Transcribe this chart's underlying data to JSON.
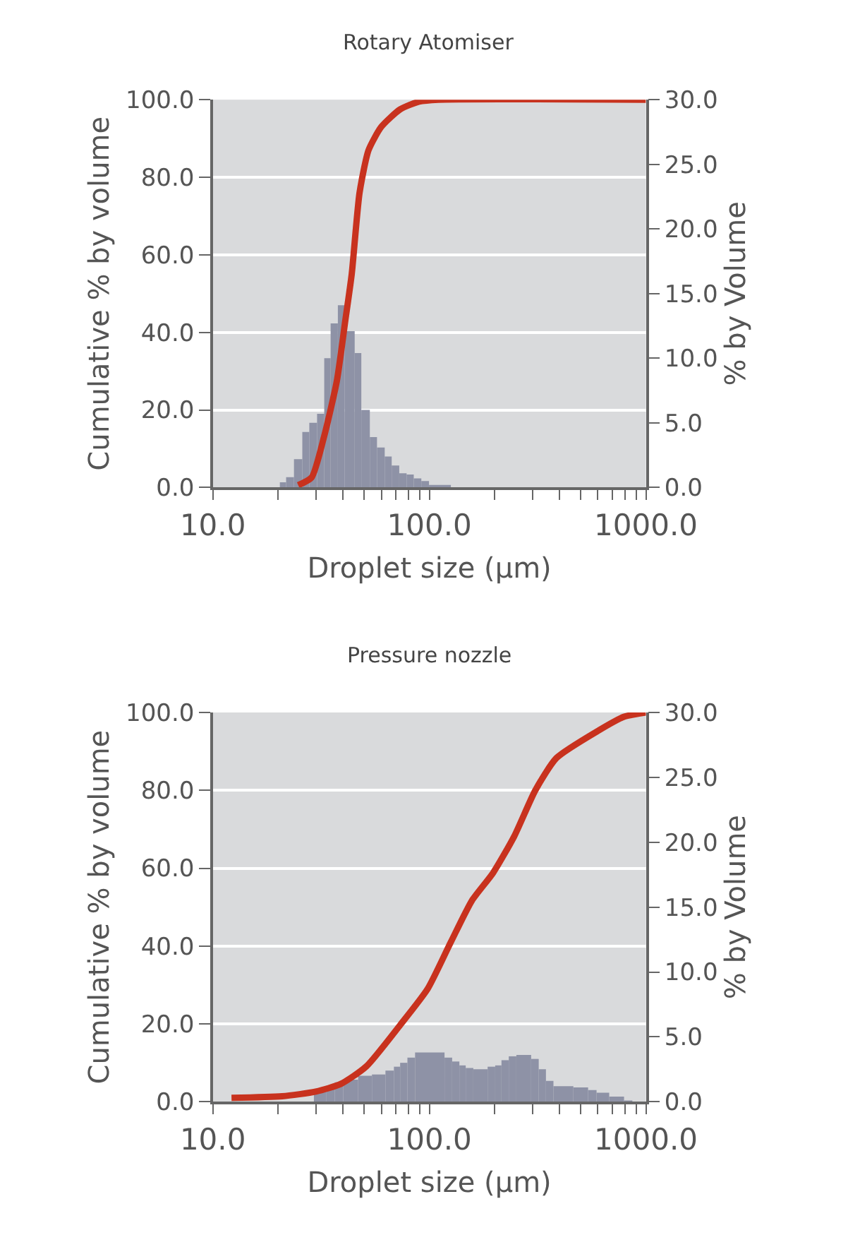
{
  "chart_data": [
    {
      "type": "histogram",
      "title": "Rotary Atomiser",
      "xlabel": "Droplet size (μm)",
      "ylabel": "Cumulative % by volume",
      "y2label": "% by Volume",
      "log": "x",
      "grid": "y",
      "xlim": [
        10,
        1000
      ],
      "xticks": [
        {
          "value": 10,
          "label": "10.0"
        },
        {
          "value": 20,
          "label": null
        },
        {
          "value": 30,
          "label": null
        },
        {
          "value": 40,
          "label": null
        },
        {
          "value": 50,
          "label": null
        },
        {
          "value": 60,
          "label": null
        },
        {
          "value": 70,
          "label": null
        },
        {
          "value": 80,
          "label": null
        },
        {
          "value": 90,
          "label": null
        },
        {
          "value": 100,
          "label": "100.0"
        },
        {
          "value": 200,
          "label": null
        },
        {
          "value": 300,
          "label": null
        },
        {
          "value": 400,
          "label": null
        },
        {
          "value": 500,
          "label": null
        },
        {
          "value": 600,
          "label": null
        },
        {
          "value": 700,
          "label": null
        },
        {
          "value": 800,
          "label": null
        },
        {
          "value": 900,
          "label": null
        },
        {
          "value": 1000,
          "label": "1000.0"
        }
      ],
      "ylim": [
        0,
        100
      ],
      "yticks": [
        {
          "value": 0,
          "label": "0.0"
        },
        {
          "value": 20,
          "label": "20.0"
        },
        {
          "value": 40,
          "label": "40.0"
        },
        {
          "value": 60,
          "label": "60.0"
        },
        {
          "value": 80,
          "label": "80.0"
        },
        {
          "value": 100,
          "label": "100.0"
        }
      ],
      "y2lim": [
        0,
        30
      ],
      "y2ticks": [
        {
          "value": 0,
          "label": "0.0"
        },
        {
          "value": 5,
          "label": "5.0"
        },
        {
          "value": 10,
          "label": "10.0"
        },
        {
          "value": 15,
          "label": "15.0"
        },
        {
          "value": 20,
          "label": "20.0"
        },
        {
          "value": 25,
          "label": "25.0"
        },
        {
          "value": 30,
          "label": "30.0"
        }
      ],
      "series": [
        {
          "axis": "y2",
          "color": "#8e92a6",
          "bins": [
            20.4,
            21.8,
            23.7,
            25.9,
            27.9,
            30.3,
            32.7,
            35.0,
            37.8,
            40.6,
            45.2,
            48.5,
            53.1,
            57.3,
            62.2,
            67.0,
            72.6,
            78.5,
            84.7,
            91.8,
            99.6,
            125.7
          ],
          "values": [
            0.4,
            0.8,
            2.2,
            4.3,
            5.0,
            5.7,
            10.0,
            12.7,
            14.1,
            12.1,
            10.4,
            6.0,
            3.9,
            3.1,
            2.4,
            1.7,
            1.1,
            1.0,
            0.7,
            0.5,
            0.2
          ]
        },
        {
          "type": "line",
          "color": "#c8321e",
          "x": [
            24.8,
            28.6,
            32.7,
            37.4,
            40.9,
            43.8,
            47.6,
            52.4,
            60,
            73.3,
            89.7,
            110,
            1000
          ],
          "values": [
            0.6,
            2.6,
            13.3,
            27.5,
            43,
            55,
            76,
            87,
            93,
            97.5,
            99.5,
            100,
            100
          ]
        }
      ]
    },
    {
      "type": "histogram",
      "title": "Pressure nozzle",
      "xlabel": "Droplet size (μm)",
      "ylabel": "Cumulative % by volume",
      "y2label": "% by Volume",
      "log": "x",
      "grid": "y",
      "xlim": [
        10,
        1000
      ],
      "xticks": [
        {
          "value": 10,
          "label": "10.0"
        },
        {
          "value": 20,
          "label": null
        },
        {
          "value": 30,
          "label": null
        },
        {
          "value": 40,
          "label": null
        },
        {
          "value": 50,
          "label": null
        },
        {
          "value": 60,
          "label": null
        },
        {
          "value": 70,
          "label": null
        },
        {
          "value": 80,
          "label": null
        },
        {
          "value": 90,
          "label": null
        },
        {
          "value": 100,
          "label": "100.0"
        },
        {
          "value": 200,
          "label": null
        },
        {
          "value": 300,
          "label": null
        },
        {
          "value": 400,
          "label": null
        },
        {
          "value": 500,
          "label": null
        },
        {
          "value": 600,
          "label": null
        },
        {
          "value": 700,
          "label": null
        },
        {
          "value": 800,
          "label": null
        },
        {
          "value": 900,
          "label": null
        },
        {
          "value": 1000,
          "label": "1000.0"
        }
      ],
      "ylim": [
        0,
        100
      ],
      "yticks": [
        {
          "value": 0,
          "label": "0.0"
        },
        {
          "value": 20,
          "label": "20.0"
        },
        {
          "value": 40,
          "label": "40.0"
        },
        {
          "value": 60,
          "label": "60.0"
        },
        {
          "value": 80,
          "label": "80.0"
        },
        {
          "value": 100,
          "label": "100.0"
        }
      ],
      "y2lim": [
        0,
        30
      ],
      "y2ticks": [
        {
          "value": 0,
          "label": "0.0"
        },
        {
          "value": 5,
          "label": "5.0"
        },
        {
          "value": 10,
          "label": "10.0"
        },
        {
          "value": 15,
          "label": "15.0"
        },
        {
          "value": 20,
          "label": "20.0"
        },
        {
          "value": 25,
          "label": "25.0"
        },
        {
          "value": 30,
          "label": "30.0"
        }
      ],
      "series": [
        {
          "axis": "y2",
          "color": "#8e92a6",
          "bins": [
            29.3,
            33.5,
            36.6,
            40.0,
            46.9,
            54.3,
            62.7,
            68.6,
            73.3,
            79.2,
            85.9,
            117.5,
            127.4,
            137.6,
            147.2,
            159.6,
            185.8,
            201.4,
            215.3,
            232.6,
            252.2,
            295.1,
            319.9,
            345.4,
            374.1,
            462.4,
            540.8,
            591.6,
            676.8,
            792.5,
            865.6
          ],
          "values": [
            0.9,
            1.2,
            1.5,
            1.7,
            2.0,
            2.1,
            2.4,
            2.7,
            3.0,
            3.4,
            3.8,
            3.4,
            3.1,
            2.8,
            2.6,
            2.5,
            2.7,
            2.8,
            3.2,
            3.5,
            3.6,
            3.3,
            2.5,
            1.6,
            1.2,
            1.1,
            0.9,
            0.7,
            0.4,
            0.1
          ]
        },
        {
          "type": "line",
          "color": "#c8321e",
          "x": [
            12.2,
            20.9,
            29.9,
            39.1,
            51.2,
            73.3,
            98.2,
            125.6,
            157.3,
            196.9,
            246.6,
            308.5,
            386.2,
            605.6,
            792.5,
            1000
          ],
          "values": [
            1.0,
            1.4,
            2.6,
            4.6,
            9.1,
            19.7,
            29,
            41,
            51.7,
            58.8,
            68.2,
            80,
            88.3,
            95.4,
            98.9,
            100
          ]
        }
      ]
    }
  ]
}
